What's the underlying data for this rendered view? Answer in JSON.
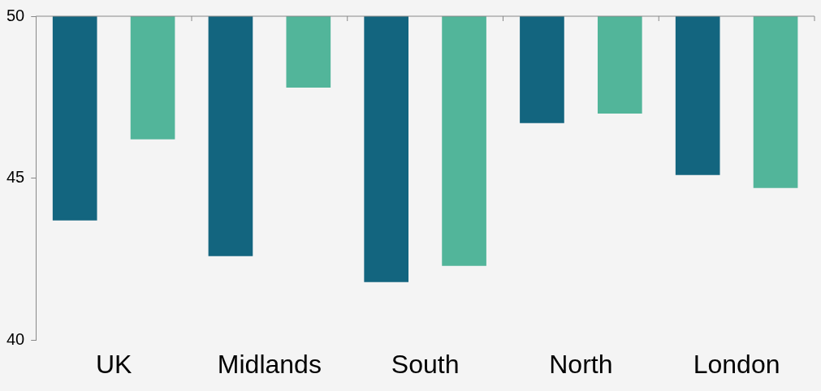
{
  "chart_data": {
    "type": "bar",
    "categories": [
      "UK",
      "Midlands",
      "South",
      "North",
      "London"
    ],
    "series": [
      {
        "color": "#13657f",
        "base": [
          50,
          50,
          50,
          50,
          50
        ],
        "values": [
          -6.3,
          -7.4,
          -8.2,
          -3.3,
          -4.9
        ]
      },
      {
        "color": "#52b59a",
        "base": [
          50,
          50,
          50,
          50,
          50
        ],
        "values": [
          -3.8,
          -2.2,
          -7.7,
          -3.0,
          -5.3
        ]
      }
    ],
    "ylim": [
      40,
      50
    ],
    "yticks": [
      40,
      45,
      50
    ],
    "grid": false,
    "legend": false
  }
}
